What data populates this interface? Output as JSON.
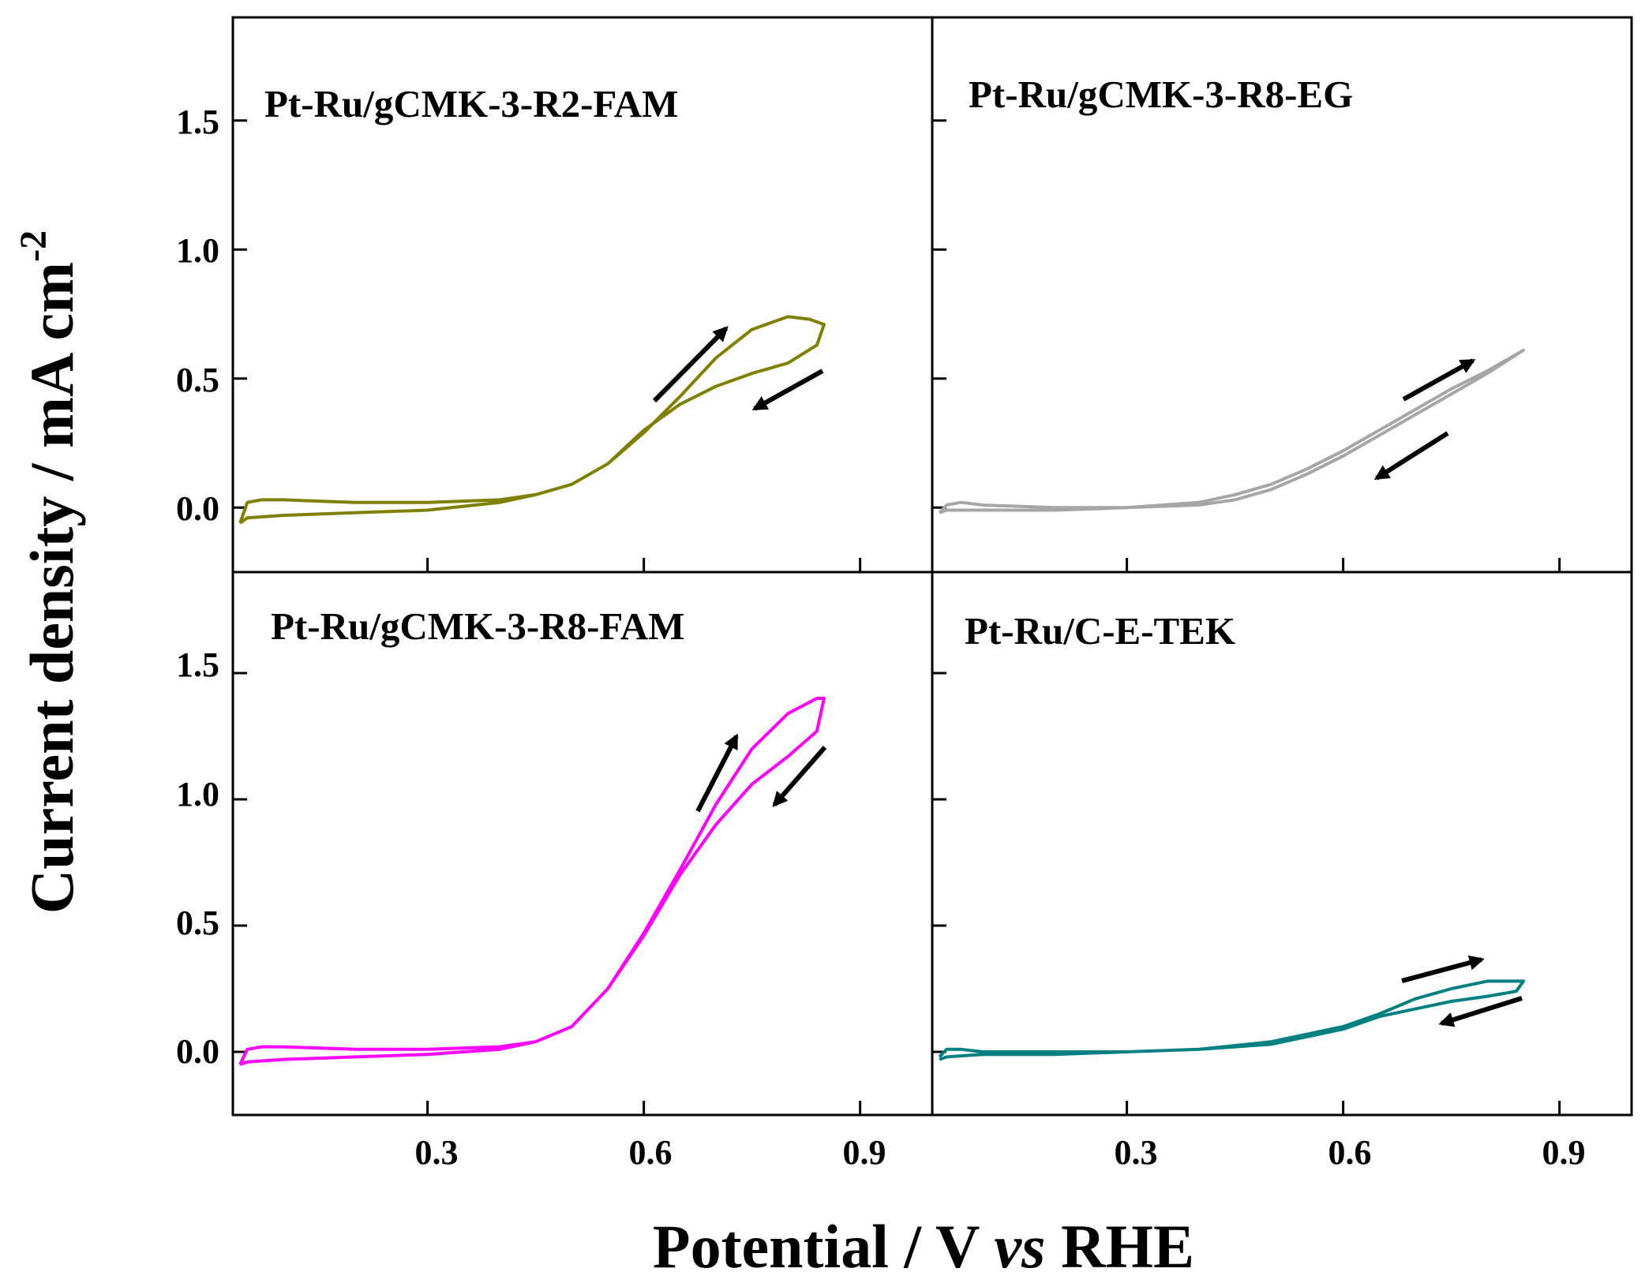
{
  "figure": {
    "xlabel_prefix": "Potential / V ",
    "xlabel_italic": "vs",
    "xlabel_suffix": " RHE",
    "ylabel": "Current density / mA cm",
    "ylabel_sup": "-2",
    "x_tick_labels": [
      "0.3",
      "0.6",
      "0.9"
    ],
    "y_tick_labels": [
      "0.0",
      "0.5",
      "1.0",
      "1.5"
    ]
  },
  "chart_data": [
    {
      "type": "line",
      "title": "Pt-Ru/gCMK-3-R2-FAM",
      "color": "#808000",
      "xlabel": "Potential / V vs RHE",
      "ylabel": "Current density / mA cm-2",
      "xlim": [
        0.03,
        1.0
      ],
      "ylim": [
        -0.25,
        1.9
      ],
      "x_ticks": [
        0.3,
        0.6,
        0.9
      ],
      "y_ticks": [
        0.0,
        0.5,
        1.0,
        1.5
      ],
      "forward_scan": {
        "x": [
          0.04,
          0.05,
          0.07,
          0.1,
          0.2,
          0.3,
          0.4,
          0.45,
          0.5,
          0.55,
          0.6,
          0.65,
          0.7,
          0.75,
          0.8,
          0.83,
          0.85
        ],
        "y": [
          -0.06,
          0.02,
          0.03,
          0.03,
          0.02,
          0.02,
          0.03,
          0.05,
          0.09,
          0.17,
          0.29,
          0.43,
          0.58,
          0.69,
          0.74,
          0.73,
          0.71
        ]
      },
      "reverse_scan": {
        "x": [
          0.85,
          0.84,
          0.8,
          0.75,
          0.7,
          0.65,
          0.6,
          0.55,
          0.5,
          0.45,
          0.4,
          0.3,
          0.2,
          0.1,
          0.05,
          0.04
        ],
        "y": [
          0.71,
          0.63,
          0.56,
          0.52,
          0.47,
          0.4,
          0.3,
          0.17,
          0.09,
          0.05,
          0.02,
          -0.01,
          -0.02,
          -0.03,
          -0.04,
          -0.06
        ]
      },
      "arrows": [
        "forward",
        "reverse"
      ]
    },
    {
      "type": "line",
      "title": "Pt-Ru/gCMK-3-R8-EG",
      "color": "#a6a6a6",
      "xlabel": "Potential / V vs RHE",
      "ylabel": "Current density / mA cm-2",
      "xlim": [
        0.03,
        1.0
      ],
      "ylim": [
        -0.25,
        1.9
      ],
      "x_ticks": [
        0.3,
        0.6,
        0.9
      ],
      "y_ticks": [
        0.0,
        0.5,
        1.0,
        1.5
      ],
      "forward_scan": {
        "x": [
          0.04,
          0.05,
          0.07,
          0.1,
          0.2,
          0.3,
          0.4,
          0.45,
          0.5,
          0.55,
          0.6,
          0.65,
          0.7,
          0.75,
          0.8,
          0.85
        ],
        "y": [
          -0.02,
          0.01,
          0.02,
          0.01,
          0.0,
          0.0,
          0.02,
          0.05,
          0.09,
          0.15,
          0.22,
          0.3,
          0.38,
          0.46,
          0.53,
          0.61
        ]
      },
      "reverse_scan": {
        "x": [
          0.85,
          0.8,
          0.75,
          0.7,
          0.65,
          0.6,
          0.55,
          0.5,
          0.45,
          0.4,
          0.3,
          0.2,
          0.1,
          0.05,
          0.04
        ],
        "y": [
          0.61,
          0.52,
          0.44,
          0.36,
          0.28,
          0.2,
          0.13,
          0.07,
          0.03,
          0.01,
          0.0,
          -0.01,
          -0.01,
          -0.01,
          -0.02
        ]
      },
      "arrows": [
        "forward",
        "reverse"
      ]
    },
    {
      "type": "line",
      "title": "Pt-Ru/gCMK-3-R8-FAM",
      "color": "#ff00ff",
      "xlabel": "Potential / V vs RHE",
      "ylabel": "Current density / mA cm-2",
      "xlim": [
        0.03,
        1.0
      ],
      "ylim": [
        -0.25,
        1.9
      ],
      "x_ticks": [
        0.3,
        0.6,
        0.9
      ],
      "y_ticks": [
        0.0,
        0.5,
        1.0,
        1.5
      ],
      "forward_scan": {
        "x": [
          0.04,
          0.05,
          0.07,
          0.1,
          0.2,
          0.3,
          0.4,
          0.45,
          0.5,
          0.55,
          0.6,
          0.65,
          0.7,
          0.75,
          0.8,
          0.84,
          0.85
        ],
        "y": [
          -0.05,
          0.01,
          0.02,
          0.02,
          0.01,
          0.01,
          0.02,
          0.04,
          0.1,
          0.25,
          0.47,
          0.72,
          0.98,
          1.2,
          1.34,
          1.4,
          1.4
        ]
      },
      "reverse_scan": {
        "x": [
          0.85,
          0.84,
          0.8,
          0.75,
          0.7,
          0.65,
          0.6,
          0.55,
          0.5,
          0.45,
          0.4,
          0.3,
          0.2,
          0.1,
          0.05,
          0.04
        ],
        "y": [
          1.4,
          1.27,
          1.17,
          1.06,
          0.9,
          0.7,
          0.46,
          0.25,
          0.1,
          0.04,
          0.01,
          -0.01,
          -0.02,
          -0.03,
          -0.04,
          -0.05
        ]
      },
      "arrows": [
        "forward",
        "reverse"
      ]
    },
    {
      "type": "line",
      "title": "Pt-Ru/C-E-TEK",
      "color": "#008080",
      "xlabel": "Potential / V vs RHE",
      "ylabel": "Current density / mA cm-2",
      "xlim": [
        0.03,
        1.0
      ],
      "ylim": [
        -0.25,
        1.9
      ],
      "x_ticks": [
        0.3,
        0.6,
        0.9
      ],
      "y_ticks": [
        0.0,
        0.5,
        1.0,
        1.5
      ],
      "forward_scan": {
        "x": [
          0.04,
          0.05,
          0.07,
          0.1,
          0.2,
          0.3,
          0.4,
          0.5,
          0.6,
          0.65,
          0.7,
          0.75,
          0.8,
          0.85
        ],
        "y": [
          -0.02,
          0.01,
          0.01,
          0.0,
          0.0,
          0.0,
          0.01,
          0.04,
          0.1,
          0.15,
          0.21,
          0.25,
          0.28,
          0.28
        ]
      },
      "reverse_scan": {
        "x": [
          0.85,
          0.84,
          0.8,
          0.75,
          0.7,
          0.65,
          0.6,
          0.5,
          0.4,
          0.3,
          0.2,
          0.1,
          0.05,
          0.04
        ],
        "y": [
          0.28,
          0.24,
          0.22,
          0.2,
          0.17,
          0.14,
          0.09,
          0.03,
          0.01,
          0.0,
          -0.01,
          -0.01,
          -0.02,
          -0.03
        ]
      },
      "arrows": [
        "forward",
        "reverse"
      ]
    }
  ]
}
